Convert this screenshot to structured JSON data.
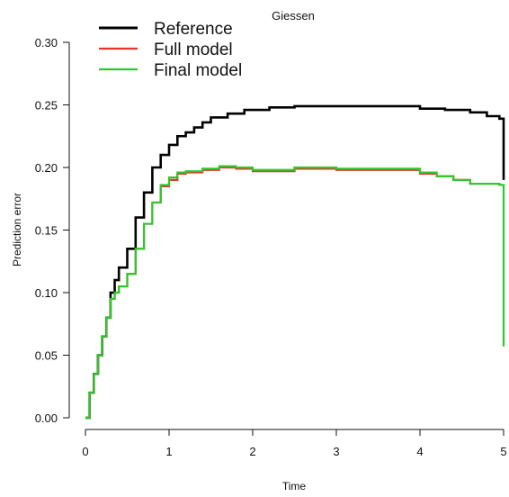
{
  "chart_data": {
    "type": "line",
    "title": "Giessen",
    "xlabel": "Time",
    "ylabel": "Prediction error",
    "xlim": [
      0,
      5
    ],
    "ylim": [
      0,
      0.3
    ],
    "x_ticks": [
      "0",
      "1",
      "2",
      "3",
      "4",
      "5"
    ],
    "y_ticks": [
      "0.00",
      "0.05",
      "0.10",
      "0.15",
      "0.20",
      "0.25",
      "0.30"
    ],
    "legend_position": "top-left",
    "series": [
      {
        "name": "Reference",
        "color": "#000000",
        "points": [
          [
            0.0,
            0.0
          ],
          [
            0.05,
            0.02
          ],
          [
            0.1,
            0.035
          ],
          [
            0.15,
            0.05
          ],
          [
            0.2,
            0.065
          ],
          [
            0.25,
            0.08
          ],
          [
            0.3,
            0.1
          ],
          [
            0.35,
            0.11
          ],
          [
            0.4,
            0.12
          ],
          [
            0.5,
            0.135
          ],
          [
            0.6,
            0.16
          ],
          [
            0.7,
            0.18
          ],
          [
            0.8,
            0.2
          ],
          [
            0.9,
            0.21
          ],
          [
            1.0,
            0.218
          ],
          [
            1.1,
            0.225
          ],
          [
            1.2,
            0.228
          ],
          [
            1.3,
            0.232
          ],
          [
            1.4,
            0.236
          ],
          [
            1.5,
            0.24
          ],
          [
            1.7,
            0.243
          ],
          [
            1.9,
            0.246
          ],
          [
            2.2,
            0.248
          ],
          [
            2.5,
            0.249
          ],
          [
            3.0,
            0.249
          ],
          [
            3.5,
            0.249
          ],
          [
            4.0,
            0.247
          ],
          [
            4.3,
            0.246
          ],
          [
            4.6,
            0.244
          ],
          [
            4.8,
            0.241
          ],
          [
            4.95,
            0.239
          ],
          [
            5.0,
            0.19
          ]
        ]
      },
      {
        "name": "Full model",
        "color": "#e8352a",
        "points": [
          [
            0.0,
            0.0
          ],
          [
            0.05,
            0.02
          ],
          [
            0.1,
            0.035
          ],
          [
            0.15,
            0.05
          ],
          [
            0.2,
            0.065
          ],
          [
            0.25,
            0.08
          ],
          [
            0.3,
            0.095
          ],
          [
            0.35,
            0.1
          ],
          [
            0.4,
            0.105
          ],
          [
            0.5,
            0.115
          ],
          [
            0.6,
            0.135
          ],
          [
            0.7,
            0.155
          ],
          [
            0.8,
            0.172
          ],
          [
            0.9,
            0.185
          ],
          [
            1.0,
            0.19
          ],
          [
            1.1,
            0.195
          ],
          [
            1.2,
            0.196
          ],
          [
            1.4,
            0.198
          ],
          [
            1.6,
            0.2
          ],
          [
            1.8,
            0.199
          ],
          [
            2.0,
            0.197
          ],
          [
            2.5,
            0.199
          ],
          [
            3.0,
            0.198
          ],
          [
            3.5,
            0.198
          ],
          [
            4.0,
            0.195
          ],
          [
            4.2,
            0.193
          ],
          [
            4.4,
            0.19
          ],
          [
            4.6,
            0.187
          ],
          [
            4.8,
            0.187
          ],
          [
            4.95,
            0.186
          ],
          [
            5.0,
            0.186
          ]
        ]
      },
      {
        "name": "Final model",
        "color": "#2ec82e",
        "points": [
          [
            0.0,
            0.0
          ],
          [
            0.05,
            0.02
          ],
          [
            0.1,
            0.035
          ],
          [
            0.15,
            0.05
          ],
          [
            0.2,
            0.065
          ],
          [
            0.25,
            0.08
          ],
          [
            0.3,
            0.095
          ],
          [
            0.35,
            0.1
          ],
          [
            0.4,
            0.105
          ],
          [
            0.5,
            0.115
          ],
          [
            0.6,
            0.135
          ],
          [
            0.7,
            0.155
          ],
          [
            0.8,
            0.172
          ],
          [
            0.9,
            0.186
          ],
          [
            1.0,
            0.192
          ],
          [
            1.1,
            0.196
          ],
          [
            1.2,
            0.197
          ],
          [
            1.4,
            0.199
          ],
          [
            1.6,
            0.201
          ],
          [
            1.8,
            0.2
          ],
          [
            2.0,
            0.198
          ],
          [
            2.5,
            0.2
          ],
          [
            3.0,
            0.199
          ],
          [
            3.5,
            0.199
          ],
          [
            4.0,
            0.196
          ],
          [
            4.2,
            0.193
          ],
          [
            4.4,
            0.19
          ],
          [
            4.6,
            0.187
          ],
          [
            4.8,
            0.187
          ],
          [
            4.95,
            0.186
          ],
          [
            5.0,
            0.057
          ]
        ]
      }
    ]
  }
}
